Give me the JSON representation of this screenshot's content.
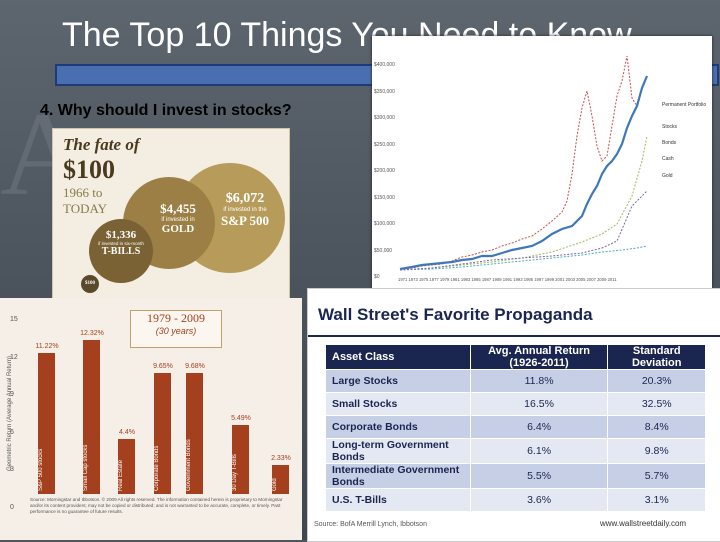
{
  "slide": {
    "title": "The Top 10 Things You Need to Know",
    "subtitle": "4. Why should I invest in stocks?"
  },
  "line_chart": {
    "y_ticks": [
      "$400,000",
      "$350,000",
      "$300,000",
      "$250,000",
      "$200,000",
      "$150,000",
      "$100,000",
      "$50,000",
      "$0"
    ],
    "x_ticks": "1971 1973 1975 1977 1979 1981 1983 1985 1987 1989 1991 1993 1995 1997 1999 2001 2003 2005 2007 2009 2011",
    "legend": [
      "Permanent Portfolio",
      "Stocks",
      "Bonds",
      "Cash",
      "Gold"
    ],
    "colors": {
      "portfolio": "#3f78b8",
      "stocks": "#c0504d",
      "bonds": "#9bbb59",
      "cash": "#4bacc6",
      "gold": "#8064a2"
    }
  },
  "fate": {
    "title_line1": "The fate of",
    "title_line2": "$100",
    "period_line1": "1966 to",
    "period_line2": "TODAY",
    "sp500_value": "$6,072",
    "sp500_note": "if invested in the",
    "sp500_label": "S&P 500",
    "gold_value": "$4,455",
    "gold_note": "if invested in",
    "gold_label": "GOLD",
    "tbills_value": "$1,336",
    "tbills_note": "if invested in six-month",
    "tbills_label": "T-BILLS",
    "base": "$100"
  },
  "bar_chart": {
    "header": "1979 - 2009",
    "subheader": "(30 years)",
    "ylabel": "Geometric Return (Average Annual Return)",
    "y_ticks": [
      "15",
      "12",
      "9",
      "6",
      "3",
      "0"
    ],
    "source_note": "Source: Morningstar and Ibbotson. © 2009 All rights reserved. The information contained herein is proprietary to Morningstar and/or its content providers; may not be copied or distributed; and is not warranted to be accurate, complete, or timely. Past performance is no guarantee of future results.",
    "chart_data": {
      "type": "bar",
      "categories": [
        "S&P 500 stocks",
        "Small Cap stocks",
        "Real Estate",
        "Corporate Bonds",
        "Government Bonds",
        "30 Day T-Bills",
        "Gold"
      ],
      "values": [
        11.22,
        12.32,
        4.4,
        9.65,
        9.68,
        5.49,
        2.33
      ],
      "labels": [
        "11.22%",
        "12.32%",
        "4.4%",
        "9.65%",
        "9.68%",
        "5.49%",
        "2.33%"
      ],
      "ylim": [
        0,
        15
      ]
    }
  },
  "table": {
    "title": "Wall Street's Favorite Propaganda",
    "headers": [
      "Asset Class",
      "Avg. Annual Return (1926-2011)",
      "Standard Deviation"
    ],
    "rows": [
      [
        "Large Stocks",
        "11.8%",
        "20.3%"
      ],
      [
        "Small Stocks",
        "16.5%",
        "32.5%"
      ],
      [
        "Corporate Bonds",
        "6.4%",
        "8.4%"
      ],
      [
        "Long-term Government Bonds",
        "6.1%",
        "9.8%"
      ],
      [
        "Intermediate Government Bonds",
        "5.5%",
        "5.7%"
      ],
      [
        "U.S. T-Bills",
        "3.6%",
        "3.1%"
      ]
    ],
    "source": "Source: BofA Merrill Lynch, Ibbotson",
    "site": "www.wallstreetdaily.com"
  }
}
